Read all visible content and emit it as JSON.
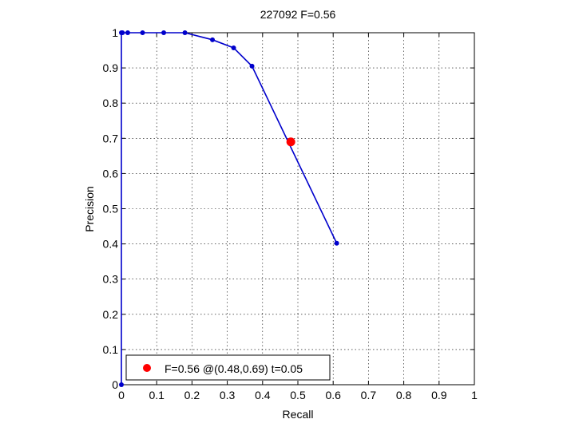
{
  "chart_data": {
    "type": "line",
    "title": "227092 F=0.56",
    "xlabel": "Recall",
    "ylabel": "Precision",
    "xlim": [
      0,
      1
    ],
    "ylim": [
      0,
      1
    ],
    "xticks": [
      "0",
      "0.1",
      "0.2",
      "0.3",
      "0.4",
      "0.5",
      "0.6",
      "0.7",
      "0.8",
      "0.9",
      "1"
    ],
    "yticks": [
      "0",
      "0.1",
      "0.2",
      "0.3",
      "0.4",
      "0.5",
      "0.6",
      "0.7",
      "0.8",
      "0.9",
      "1"
    ],
    "grid": true,
    "legend_position": "bottom-left",
    "series": [
      {
        "color": "#0000cc",
        "x": [
          0,
          0,
          0.003,
          0.018,
          0.06,
          0.12,
          0.18,
          0.258,
          0.318,
          0.37,
          0.61
        ],
        "y": [
          0,
          1,
          1,
          1,
          1,
          1,
          1,
          0.98,
          0.957,
          0.905,
          0.402
        ]
      }
    ],
    "marker_point": {
      "x": 0.48,
      "y": 0.69,
      "color": "#ff0000",
      "label": "F=0.56 @(0.48,0.69) t=0.05"
    }
  }
}
